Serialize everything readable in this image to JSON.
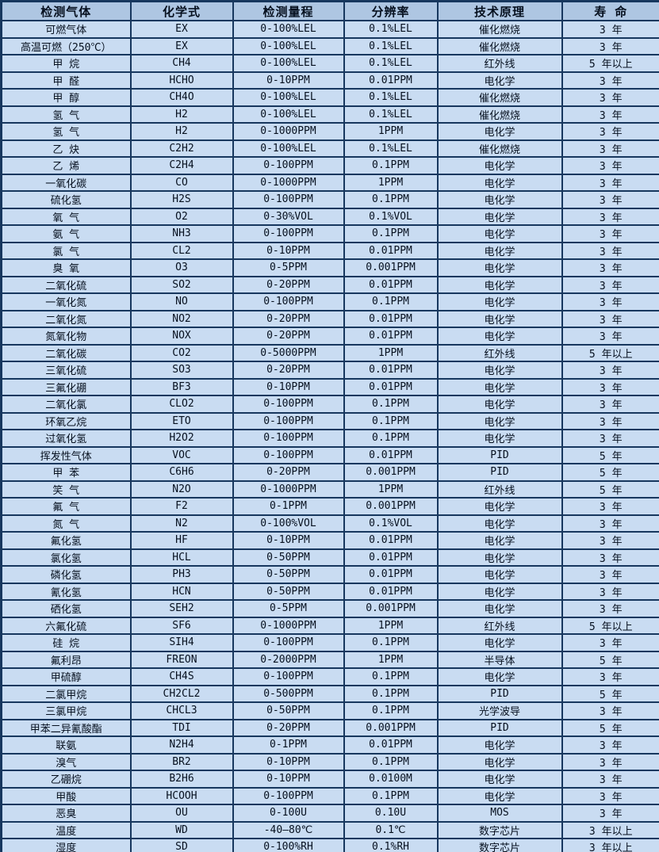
{
  "table": {
    "columns": [
      {
        "key": "gas",
        "label": "检测气体"
      },
      {
        "key": "formula",
        "label": "化学式"
      },
      {
        "key": "range",
        "label": "检测量程"
      },
      {
        "key": "resolution",
        "label": "分辨率"
      },
      {
        "key": "principle",
        "label": "技术原理"
      },
      {
        "key": "lifespan",
        "label": "寿 命"
      }
    ],
    "rows": [
      [
        "可燃气体",
        "EX",
        "0-100%LEL",
        "0.1%LEL",
        "催化燃烧",
        "3 年"
      ],
      [
        "高温可燃（250℃）",
        "EX",
        "0-100%LEL",
        "0.1%LEL",
        "催化燃烧",
        "3 年"
      ],
      [
        "甲 烷",
        "CH4",
        "0-100%LEL",
        "0.1%LEL",
        "红外线",
        "5 年以上"
      ],
      [
        "甲 醛",
        "HCHO",
        "0-10PPM",
        "0.01PPM",
        "电化学",
        "3 年"
      ],
      [
        "甲 醇",
        "CH4O",
        "0-100%LEL",
        "0.1%LEL",
        "催化燃烧",
        "3 年"
      ],
      [
        "氢 气",
        "H2",
        "0-100%LEL",
        "0.1%LEL",
        "催化燃烧",
        "3 年"
      ],
      [
        "氢 气",
        "H2",
        "0-1000PPM",
        "1PPM",
        "电化学",
        "3 年"
      ],
      [
        "乙 炔",
        "C2H2",
        "0-100%LEL",
        "0.1%LEL",
        "催化燃烧",
        "3 年"
      ],
      [
        "乙 烯",
        "C2H4",
        "0-100PPM",
        "0.1PPM",
        "电化学",
        "3 年"
      ],
      [
        "一氧化碳",
        "CO",
        "0-1000PPM",
        "1PPM",
        "电化学",
        "3 年"
      ],
      [
        "硫化氢",
        "H2S",
        "0-100PPM",
        "0.1PPM",
        "电化学",
        "3 年"
      ],
      [
        "氧 气",
        "O2",
        "0-30%VOL",
        "0.1%VOL",
        "电化学",
        "3 年"
      ],
      [
        "氨 气",
        "NH3",
        "0-100PPM",
        "0.1PPM",
        "电化学",
        "3 年"
      ],
      [
        "氯 气",
        "CL2",
        "0-10PPM",
        "0.01PPM",
        "电化学",
        "3 年"
      ],
      [
        "臭 氧",
        "O3",
        "0-5PPM",
        "0.001PPM",
        "电化学",
        "3 年"
      ],
      [
        "二氧化硫",
        "SO2",
        "0-20PPM",
        "0.01PPM",
        "电化学",
        "3 年"
      ],
      [
        "一氧化氮",
        "NO",
        "0-100PPM",
        "0.1PPM",
        "电化学",
        "3 年"
      ],
      [
        "二氧化氮",
        "NO2",
        "0-20PPM",
        "0.01PPM",
        "电化学",
        "3 年"
      ],
      [
        "氮氧化物",
        "NOX",
        "0-20PPM",
        "0.01PPM",
        "电化学",
        "3 年"
      ],
      [
        "二氧化碳",
        "CO2",
        "0-5000PPM",
        "1PPM",
        "红外线",
        "5 年以上"
      ],
      [
        "三氧化硫",
        "SO3",
        "0-20PPM",
        "0.01PPM",
        "电化学",
        "3 年"
      ],
      [
        "三氟化硼",
        "BF3",
        "0-10PPM",
        "0.01PPM",
        "电化学",
        "3 年"
      ],
      [
        "二氧化氯",
        "CLO2",
        "0-100PPM",
        "0.1PPM",
        "电化学",
        "3 年"
      ],
      [
        "环氧乙烷",
        "ETO",
        "0-100PPM",
        "0.1PPM",
        "电化学",
        "3 年"
      ],
      [
        "过氧化氢",
        "H2O2",
        "0-100PPM",
        "0.1PPM",
        "电化学",
        "3 年"
      ],
      [
        "挥发性气体",
        "VOC",
        "0-100PPM",
        "0.01PPM",
        "PID",
        "5 年"
      ],
      [
        "甲 苯",
        "C6H6",
        "0-20PPM",
        "0.001PPM",
        "PID",
        "5 年"
      ],
      [
        "笑 气",
        "N2O",
        "0-1000PPM",
        "1PPM",
        "红外线",
        "5 年"
      ],
      [
        "氟 气",
        "F2",
        "0-1PPM",
        "0.001PPM",
        "电化学",
        "3 年"
      ],
      [
        "氮 气",
        "N2",
        "0-100%VOL",
        "0.1%VOL",
        "电化学",
        "3 年"
      ],
      [
        "氟化氢",
        "HF",
        "0-10PPM",
        "0.01PPM",
        "电化学",
        "3 年"
      ],
      [
        "氯化氢",
        "HCL",
        "0-50PPM",
        "0.01PPM",
        "电化学",
        "3 年"
      ],
      [
        "磷化氢",
        "PH3",
        "0-50PPM",
        "0.01PPM",
        "电化学",
        "3 年"
      ],
      [
        "氰化氢",
        "HCN",
        "0-50PPM",
        "0.01PPM",
        "电化学",
        "3 年"
      ],
      [
        "硒化氢",
        "SEH2",
        "0-5PPM",
        "0.001PPM",
        "电化学",
        "3 年"
      ],
      [
        "六氟化硫",
        "SF6",
        "0-1000PPM",
        "1PPM",
        "红外线",
        "5 年以上"
      ],
      [
        "硅 烷",
        "SIH4",
        "0-100PPM",
        "0.1PPM",
        "电化学",
        "3 年"
      ],
      [
        "氟利昂",
        "FREON",
        "0-2000PPM",
        "1PPM",
        "半导体",
        "5 年"
      ],
      [
        "甲硫醇",
        "CH4S",
        "0-100PPM",
        "0.1PPM",
        "电化学",
        "3 年"
      ],
      [
        "二氯甲烷",
        "CH2CL2",
        "0-500PPM",
        "0.1PPM",
        "PID",
        "5 年"
      ],
      [
        "三氯甲烷",
        "CHCL3",
        "0-50PPM",
        "0.1PPM",
        "光学波导",
        "3 年"
      ],
      [
        "甲苯二异氰酸酯",
        "TDI",
        "0-20PPM",
        "0.001PPM",
        "PID",
        "5 年"
      ],
      [
        "联氨",
        "N2H4",
        "0-1PPM",
        "0.01PPM",
        "电化学",
        "3 年"
      ],
      [
        "溴气",
        "BR2",
        "0-10PPM",
        "0.1PPM",
        "电化学",
        "3 年"
      ],
      [
        "乙硼烷",
        "B2H6",
        "0-10PPM",
        "0.0100M",
        "电化学",
        "3 年"
      ],
      [
        "甲酸",
        "HCOOH",
        "0-100PPM",
        "0.1PPM",
        "电化学",
        "3 年"
      ],
      [
        "恶臭",
        "OU",
        "0-100U",
        "0.10U",
        "MOS",
        "3 年"
      ],
      [
        "温度",
        "WD",
        "-40—80℃",
        "0.1℃",
        "数字芯片",
        "3 年以上"
      ],
      [
        "湿度",
        "SD",
        "0-100%RH",
        "0.1%RH",
        "数字芯片",
        "3 年以上"
      ]
    ],
    "colors": {
      "header_bg": "#aec6e2",
      "row_bg": "#c9dcf2",
      "border": "#17375e",
      "text": "#06101f"
    }
  }
}
